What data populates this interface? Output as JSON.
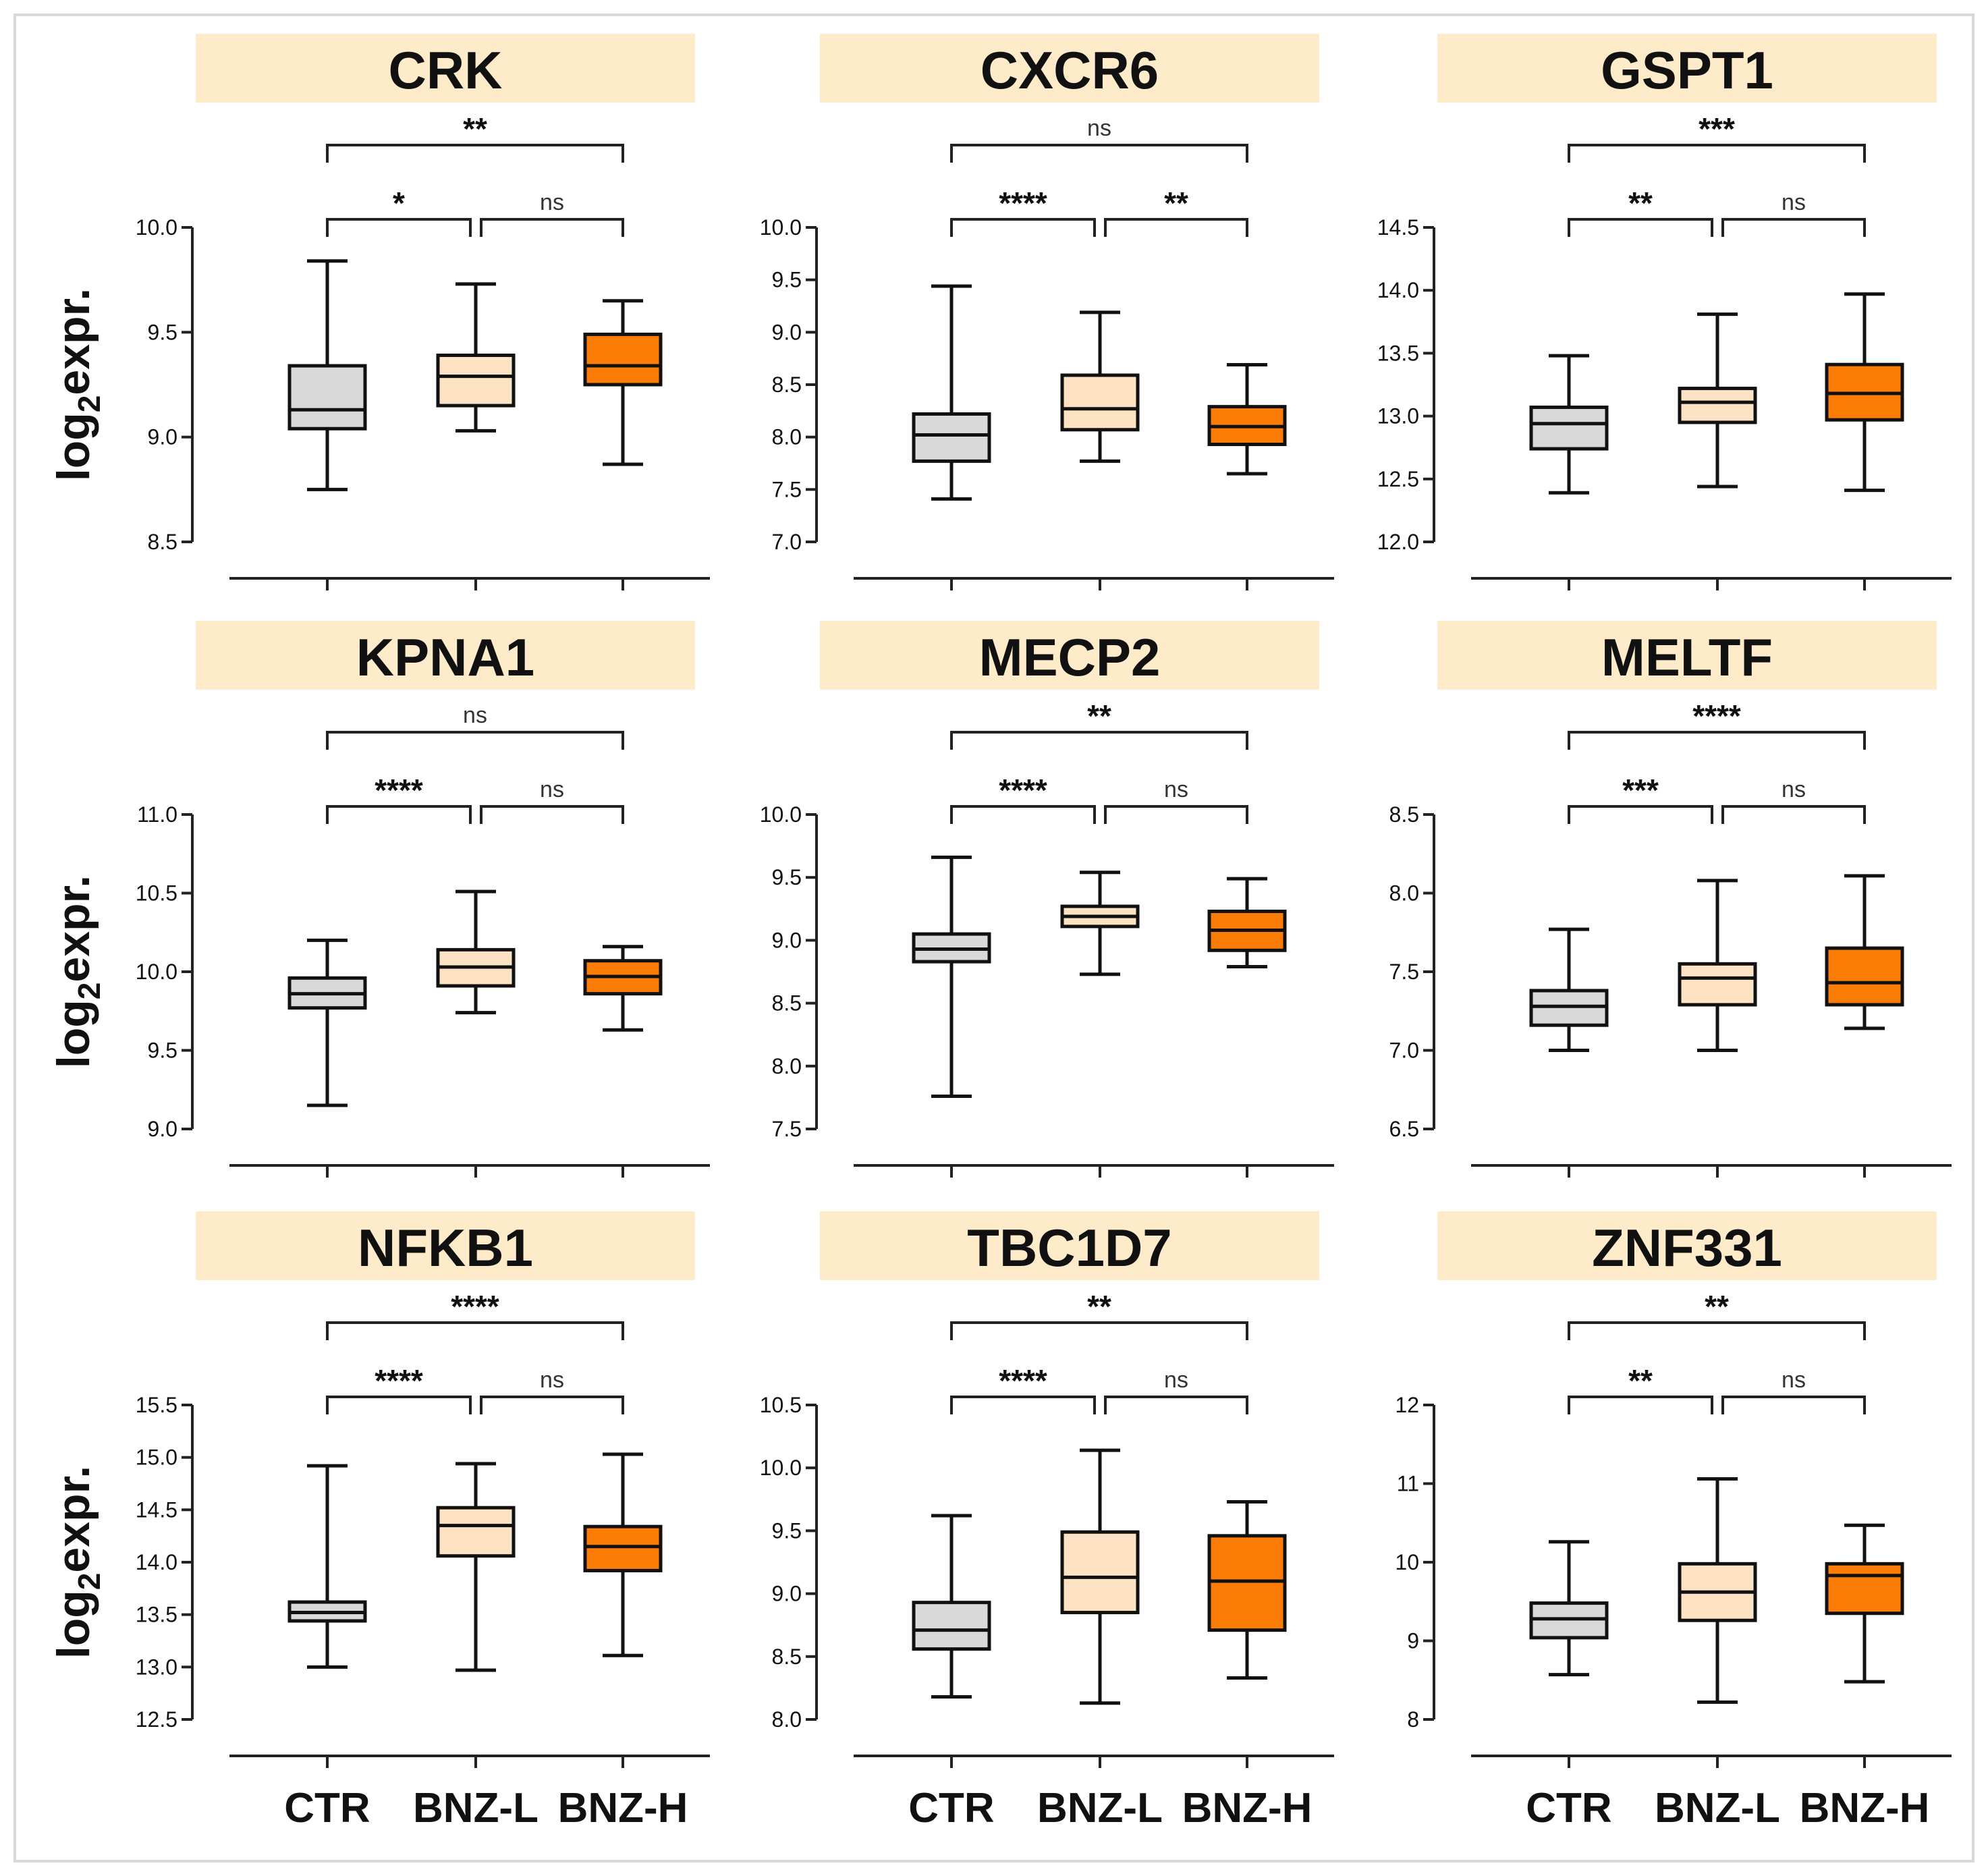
{
  "chart_data": {
    "type": "boxplot",
    "ylabel": "log2expr.",
    "ylabel_parts": {
      "base": "log",
      "sub": "2",
      "rest": "expr."
    },
    "categories": [
      "CTR",
      "BNZ-L",
      "BNZ-H"
    ],
    "colors": {
      "CTR": "#d9d9d9",
      "BNZ-L": "#fde3c4",
      "BNZ-H": "#fb7d06",
      "title_bg": "#fdebc9"
    },
    "panels": [
      {
        "title": "CRK",
        "ylim": [
          8.5,
          10.0
        ],
        "ticks": [
          "8.5",
          "9.0",
          "9.5",
          "10.0"
        ],
        "boxes": [
          {
            "min": 8.75,
            "q1": 9.04,
            "median": 9.13,
            "q3": 9.34,
            "max": 9.84
          },
          {
            "min": 9.03,
            "q1": 9.15,
            "median": 9.29,
            "q3": 9.39,
            "max": 9.73
          },
          {
            "min": 8.87,
            "q1": 9.25,
            "median": 9.34,
            "q3": 9.49,
            "max": 9.65
          }
        ],
        "sig": {
          "ctr_bnzl": "*",
          "bnzl_bnzh": "ns",
          "ctr_bnzh": "**"
        }
      },
      {
        "title": "CXCR6",
        "ylim": [
          7.0,
          10.0
        ],
        "ticks": [
          "7.0",
          "7.5",
          "8.0",
          "8.5",
          "9.0",
          "9.5",
          "10.0"
        ],
        "boxes": [
          {
            "min": 7.41,
            "q1": 7.77,
            "median": 8.02,
            "q3": 8.22,
            "max": 9.44
          },
          {
            "min": 7.77,
            "q1": 8.07,
            "median": 8.27,
            "q3": 8.59,
            "max": 9.19
          },
          {
            "min": 7.65,
            "q1": 7.93,
            "median": 8.1,
            "q3": 8.29,
            "max": 8.69
          }
        ],
        "sig": {
          "ctr_bnzl": "****",
          "bnzl_bnzh": "**",
          "ctr_bnzh": "ns"
        }
      },
      {
        "title": "GSPT1",
        "ylim": [
          12.0,
          14.5
        ],
        "ticks": [
          "12.0",
          "12.5",
          "13.0",
          "13.5",
          "14.0",
          "14.5"
        ],
        "boxes": [
          {
            "min": 12.39,
            "q1": 12.74,
            "median": 12.94,
            "q3": 13.07,
            "max": 13.48
          },
          {
            "min": 12.44,
            "q1": 12.95,
            "median": 13.11,
            "q3": 13.22,
            "max": 13.81
          },
          {
            "min": 12.41,
            "q1": 12.97,
            "median": 13.18,
            "q3": 13.41,
            "max": 13.97
          }
        ],
        "sig": {
          "ctr_bnzl": "**",
          "bnzl_bnzh": "ns",
          "ctr_bnzh": "***"
        }
      },
      {
        "title": "KPNA1",
        "ylim": [
          9.0,
          11.0
        ],
        "ticks": [
          "9.0",
          "9.5",
          "10.0",
          "10.5",
          "11.0"
        ],
        "boxes": [
          {
            "min": 9.15,
            "q1": 9.77,
            "median": 9.86,
            "q3": 9.96,
            "max": 10.2
          },
          {
            "min": 9.74,
            "q1": 9.91,
            "median": 10.03,
            "q3": 10.14,
            "max": 10.51
          },
          {
            "min": 9.63,
            "q1": 9.86,
            "median": 9.97,
            "q3": 10.07,
            "max": 10.16
          }
        ],
        "sig": {
          "ctr_bnzl": "****",
          "bnzl_bnzh": "ns",
          "ctr_bnzh": "ns"
        }
      },
      {
        "title": "MECP2",
        "ylim": [
          7.5,
          10.0
        ],
        "ticks": [
          "7.5",
          "8.0",
          "8.5",
          "9.0",
          "9.5",
          "10.0"
        ],
        "boxes": [
          {
            "min": 7.76,
            "q1": 8.83,
            "median": 8.93,
            "q3": 9.05,
            "max": 9.66
          },
          {
            "min": 8.73,
            "q1": 9.11,
            "median": 9.19,
            "q3": 9.27,
            "max": 9.54
          },
          {
            "min": 8.79,
            "q1": 8.92,
            "median": 9.08,
            "q3": 9.23,
            "max": 9.49
          }
        ],
        "sig": {
          "ctr_bnzl": "****",
          "bnzl_bnzh": "ns",
          "ctr_bnzh": "**"
        }
      },
      {
        "title": "MELTF",
        "ylim": [
          6.5,
          8.5
        ],
        "ticks": [
          "6.5",
          "7.0",
          "7.5",
          "8.0",
          "8.5"
        ],
        "boxes": [
          {
            "min": 7.0,
            "q1": 7.16,
            "median": 7.28,
            "q3": 7.38,
            "max": 7.77
          },
          {
            "min": 7.0,
            "q1": 7.29,
            "median": 7.46,
            "q3": 7.55,
            "max": 8.08
          },
          {
            "min": 7.14,
            "q1": 7.29,
            "median": 7.43,
            "q3": 7.65,
            "max": 8.11
          }
        ],
        "sig": {
          "ctr_bnzl": "***",
          "bnzl_bnzh": "ns",
          "ctr_bnzh": "****"
        }
      },
      {
        "title": "NFKB1",
        "ylim": [
          12.5,
          15.5
        ],
        "ticks": [
          "12.5",
          "13.0",
          "13.5",
          "14.0",
          "14.5",
          "15.0",
          "15.5"
        ],
        "boxes": [
          {
            "min": 13.0,
            "q1": 13.44,
            "median": 13.52,
            "q3": 13.62,
            "max": 14.92
          },
          {
            "min": 12.97,
            "q1": 14.06,
            "median": 14.35,
            "q3": 14.52,
            "max": 14.94
          },
          {
            "min": 13.11,
            "q1": 13.92,
            "median": 14.15,
            "q3": 14.34,
            "max": 15.03
          }
        ],
        "sig": {
          "ctr_bnzl": "****",
          "bnzl_bnzh": "ns",
          "ctr_bnzh": "****"
        }
      },
      {
        "title": "TBC1D7",
        "ylim": [
          8.0,
          10.5
        ],
        "ticks": [
          "8.0",
          "8.5",
          "9.0",
          "9.5",
          "10.0",
          "10.5"
        ],
        "boxes": [
          {
            "min": 8.18,
            "q1": 8.56,
            "median": 8.71,
            "q3": 8.93,
            "max": 9.62
          },
          {
            "min": 8.13,
            "q1": 8.85,
            "median": 9.13,
            "q3": 9.49,
            "max": 10.14
          },
          {
            "min": 8.33,
            "q1": 8.71,
            "median": 9.1,
            "q3": 9.46,
            "max": 9.73
          }
        ],
        "sig": {
          "ctr_bnzl": "****",
          "bnzl_bnzh": "ns",
          "ctr_bnzh": "**"
        }
      },
      {
        "title": "ZNF331",
        "ylim": [
          8,
          12
        ],
        "ticks": [
          "8",
          "9",
          "10",
          "11",
          "12"
        ],
        "boxes": [
          {
            "min": 8.57,
            "q1": 9.04,
            "median": 9.28,
            "q3": 9.48,
            "max": 10.26
          },
          {
            "min": 8.22,
            "q1": 9.26,
            "median": 9.62,
            "q3": 9.98,
            "max": 11.06
          },
          {
            "min": 8.48,
            "q1": 9.35,
            "median": 9.83,
            "q3": 9.98,
            "max": 10.47
          }
        ],
        "sig": {
          "ctr_bnzl": "**",
          "bnzl_bnzh": "ns",
          "ctr_bnzh": "**"
        }
      }
    ]
  }
}
